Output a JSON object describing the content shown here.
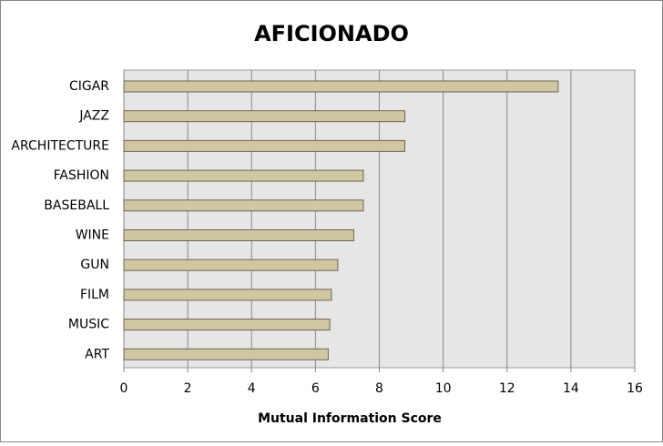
{
  "chart_data": {
    "type": "bar",
    "orientation": "horizontal",
    "title": "AFICIONADO",
    "x_label": "Mutual Information Score",
    "categories": [
      "CIGAR",
      "JAZZ",
      "ARCHITECTURE",
      "FASHION",
      "BASEBALL",
      "WINE",
      "GUN",
      "FILM",
      "MUSIC",
      "ART"
    ],
    "values": [
      13.6,
      8.8,
      8.8,
      7.5,
      7.5,
      7.2,
      6.7,
      6.5,
      6.45,
      6.4
    ],
    "color": "#cfc7a1",
    "xlim": [
      0,
      16
    ],
    "xticks": [
      0,
      2,
      4,
      6,
      8,
      10,
      12,
      14,
      16
    ],
    "grid": true
  }
}
